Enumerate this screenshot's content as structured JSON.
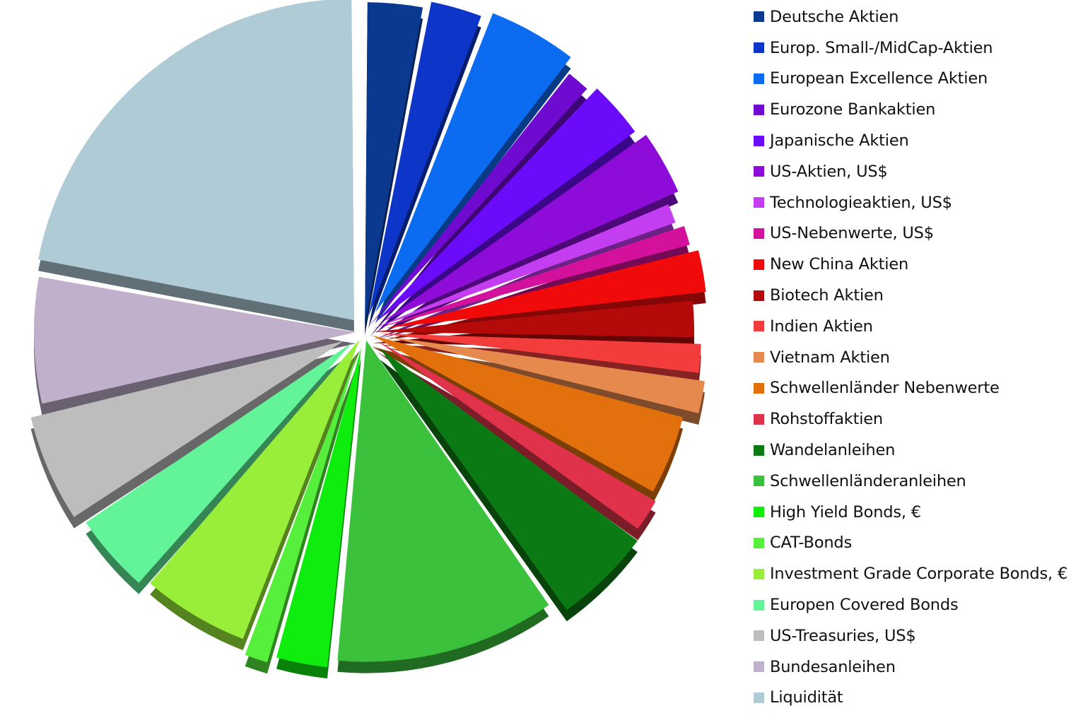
{
  "chart_data": {
    "type": "pie",
    "title": "",
    "legend_position": "right",
    "exploded": true,
    "style_3d": true,
    "slices": [
      {
        "label": "Deutsche Aktien",
        "value": 3.2,
        "color": "#0B3990"
      },
      {
        "label": "Europ. Small-/MidCap-Aktien",
        "value": 3.0,
        "color": "#0D36C9"
      },
      {
        "label": "European Excellence Aktien",
        "value": 5.0,
        "color": "#0C6CF1"
      },
      {
        "label": "Eurozone Bankaktien",
        "value": 1.5,
        "color": "#6F0BD1"
      },
      {
        "label": "Japanische Aktien",
        "value": 3.3,
        "color": "#6A0CF9"
      },
      {
        "label": "US-Aktien, US$",
        "value": 3.7,
        "color": "#8E0CD8"
      },
      {
        "label": "Technologieaktien, US$",
        "value": 1.3,
        "color": "#C43EF1"
      },
      {
        "label": "US-Nebenwerte, US$",
        "value": 1.3,
        "color": "#D4119D"
      },
      {
        "label": "New China Aktien",
        "value": 2.5,
        "color": "#F00A0A"
      },
      {
        "label": "Biotech Aktien",
        "value": 2.2,
        "color": "#B50A0A"
      },
      {
        "label": "Indien Aktien",
        "value": 1.8,
        "color": "#F33D3D"
      },
      {
        "label": "Vietnam Aktien",
        "value": 2.0,
        "color": "#E5894E"
      },
      {
        "label": "Schwellenländer Nebenwerte",
        "value": 4.5,
        "color": "#E1700D"
      },
      {
        "label": "Rohstoffaktien",
        "value": 2.0,
        "color": "#E0324A"
      },
      {
        "label": "Wandelanleihen",
        "value": 5.5,
        "color": "#0C7A14"
      },
      {
        "label": "Schwellenländeranleihen",
        "value": 12.0,
        "color": "#3CC13C"
      },
      {
        "label": "High Yield Bonds, €",
        "value": 3.0,
        "color": "#0FED0F"
      },
      {
        "label": "CAT-Bonds",
        "value": 1.5,
        "color": "#56F03C"
      },
      {
        "label": "Investment Grade Corporate Bonds, €",
        "value": 6.0,
        "color": "#99EE3A"
      },
      {
        "label": "Europen Covered Bonds",
        "value": 4.5,
        "color": "#63F49A"
      },
      {
        "label": "US-Treasuries, US$",
        "value": 6.0,
        "color": "#BDBDBD"
      },
      {
        "label": "Bundesanleihen",
        "value": 7.0,
        "color": "#C0B0CB"
      },
      {
        "label": "Liquidität",
        "value": 23.5,
        "color": "#AFCBD6"
      }
    ]
  }
}
